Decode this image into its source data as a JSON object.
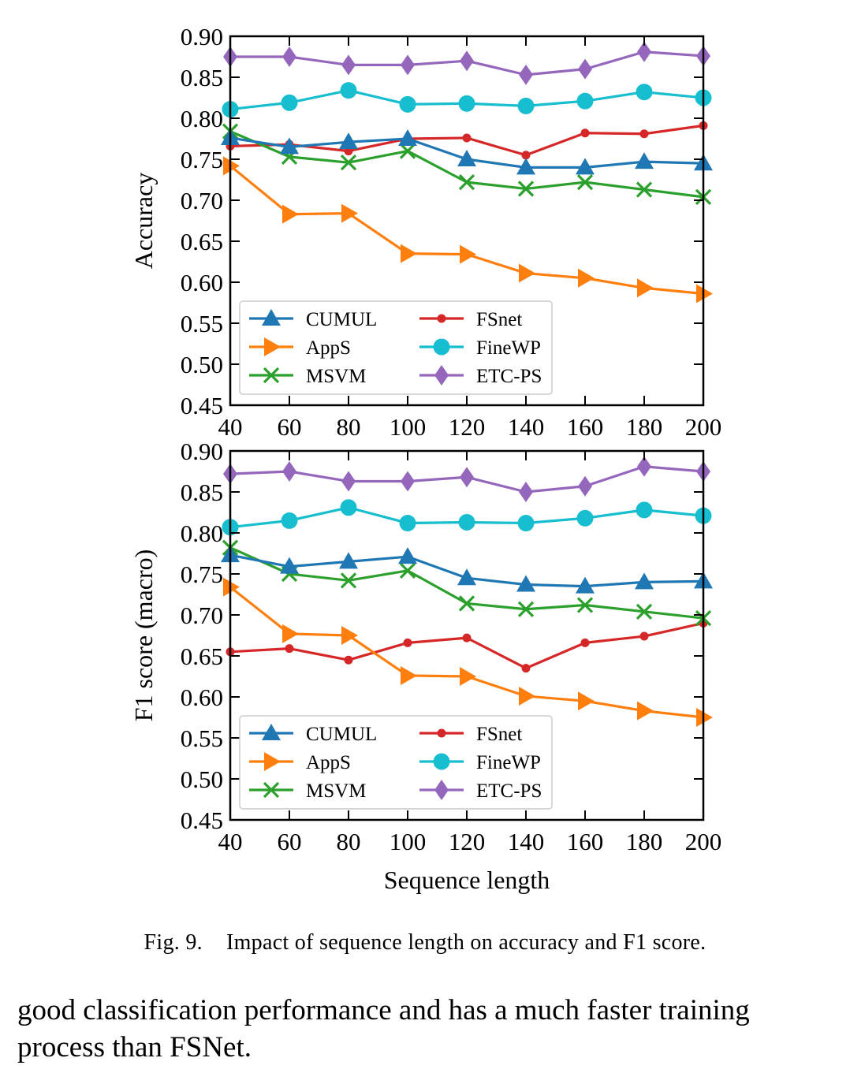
{
  "colors": {
    "CUMUL": "#1f77b4",
    "AppS": "#ff7f0e",
    "MSVM": "#2ca02c",
    "FSnet": "#d62728",
    "FineWP": "#17becf",
    "ETC-PS": "#9467bd"
  },
  "legend_columns": [
    [
      "CUMUL",
      "AppS",
      "MSVM"
    ],
    [
      "FSnet",
      "FineWP",
      "ETC-PS"
    ]
  ],
  "markers": {
    "CUMUL": "triangle-up",
    "AppS": "triangle-right",
    "MSVM": "x",
    "FSnet": "small-circle",
    "FineWP": "large-circle",
    "ETC-PS": "diamond"
  },
  "chart_data": [
    {
      "type": "line",
      "ylabel": "Accuracy",
      "xlabel": "",
      "x": [
        40,
        60,
        80,
        100,
        120,
        140,
        160,
        180,
        200
      ],
      "xlim": [
        40,
        200
      ],
      "ylim": [
        0.45,
        0.9
      ],
      "yticks": [
        "0.45",
        "0.50",
        "0.55",
        "0.60",
        "0.65",
        "0.70",
        "0.75",
        "0.80",
        "0.85",
        "0.90"
      ],
      "xticks": [
        "40",
        "60",
        "80",
        "100",
        "120",
        "140",
        "160",
        "180",
        "200"
      ],
      "legend_position": "lower-left",
      "series": [
        {
          "name": "CUMUL",
          "values": [
            0.776,
            0.765,
            0.771,
            0.775,
            0.75,
            0.74,
            0.74,
            0.747,
            0.745
          ]
        },
        {
          "name": "AppS",
          "values": [
            0.742,
            0.683,
            0.684,
            0.635,
            0.634,
            0.611,
            0.605,
            0.593,
            0.586
          ]
        },
        {
          "name": "MSVM",
          "values": [
            0.784,
            0.753,
            0.746,
            0.76,
            0.722,
            0.714,
            0.722,
            0.713,
            0.704
          ]
        },
        {
          "name": "FSnet",
          "values": [
            0.766,
            0.768,
            0.76,
            0.775,
            0.776,
            0.755,
            0.782,
            0.781,
            0.791
          ]
        },
        {
          "name": "FineWP",
          "values": [
            0.811,
            0.819,
            0.834,
            0.817,
            0.818,
            0.815,
            0.821,
            0.832,
            0.825
          ]
        },
        {
          "name": "ETC-PS",
          "values": [
            0.875,
            0.875,
            0.865,
            0.865,
            0.87,
            0.853,
            0.86,
            0.881,
            0.876
          ]
        }
      ]
    },
    {
      "type": "line",
      "ylabel": "F1 score (macro)",
      "xlabel": "Sequence length",
      "x": [
        40,
        60,
        80,
        100,
        120,
        140,
        160,
        180,
        200
      ],
      "xlim": [
        40,
        200
      ],
      "ylim": [
        0.45,
        0.9
      ],
      "yticks": [
        "0.45",
        "0.50",
        "0.55",
        "0.60",
        "0.65",
        "0.70",
        "0.75",
        "0.80",
        "0.85",
        "0.90"
      ],
      "xticks": [
        "40",
        "60",
        "80",
        "100",
        "120",
        "140",
        "160",
        "180",
        "200"
      ],
      "legend_position": "lower-left",
      "series": [
        {
          "name": "CUMUL",
          "values": [
            0.773,
            0.759,
            0.765,
            0.771,
            0.745,
            0.737,
            0.735,
            0.74,
            0.741
          ]
        },
        {
          "name": "AppS",
          "values": [
            0.734,
            0.677,
            0.675,
            0.626,
            0.625,
            0.601,
            0.595,
            0.583,
            0.575
          ]
        },
        {
          "name": "MSVM",
          "values": [
            0.782,
            0.75,
            0.742,
            0.754,
            0.714,
            0.707,
            0.712,
            0.704,
            0.696
          ]
        },
        {
          "name": "FSnet",
          "values": [
            0.655,
            0.659,
            0.645,
            0.666,
            0.672,
            0.635,
            0.666,
            0.674,
            0.69
          ]
        },
        {
          "name": "FineWP",
          "values": [
            0.807,
            0.815,
            0.831,
            0.812,
            0.813,
            0.812,
            0.818,
            0.828,
            0.821
          ]
        },
        {
          "name": "ETC-PS",
          "values": [
            0.872,
            0.875,
            0.863,
            0.863,
            0.868,
            0.85,
            0.857,
            0.881,
            0.875
          ]
        }
      ]
    }
  ],
  "caption": {
    "label": "Fig. 9.",
    "text": "Impact of sequence length on accuracy and F1 score."
  },
  "body_text": {
    "line1": "good classification performance and has a much faster training",
    "line2": "process than FSNet."
  }
}
